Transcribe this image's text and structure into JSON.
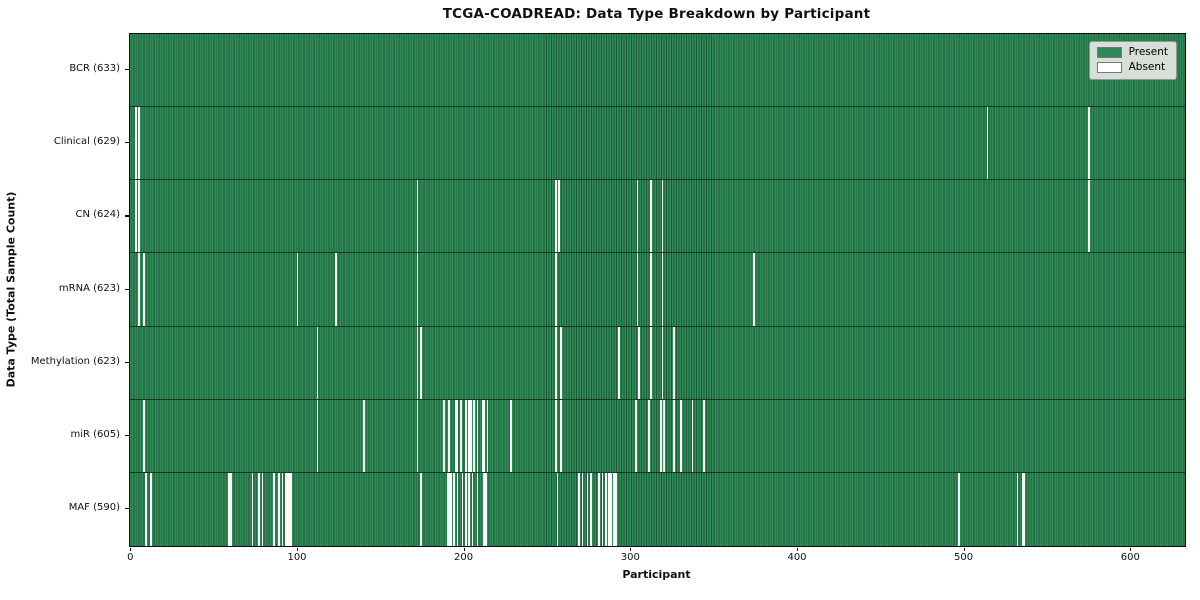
{
  "figure": {
    "title": "TCGA-COADREAD: Data Type Breakdown by Participant",
    "xlabel": "Participant",
    "ylabel": "Data Type (Total Sample Count)"
  },
  "chart_data": {
    "type": "heatmap",
    "title": "TCGA-COADREAD: Data Type Breakdown by Participant",
    "xlabel": "Participant",
    "ylabel": "Data Type (Total Sample Count)",
    "n_participants": 633,
    "x_ticks": [
      0,
      100,
      200,
      300,
      400,
      500,
      600
    ],
    "xlim": [
      0,
      633
    ],
    "grid": false,
    "legend_position": "upper right",
    "legend_items": [
      {
        "label": "Present",
        "color": "#2e8b57"
      },
      {
        "label": "Absent",
        "color": "#ffffff"
      }
    ],
    "present_color": "#2e8b57",
    "present_edge_color": "#1e5c3a",
    "absent_color": "#fafafa",
    "rows": [
      {
        "name": "BCR",
        "label": "BCR (633)",
        "total_samples": 633,
        "absent_participants": []
      },
      {
        "name": "Clinical",
        "label": "Clinical (629)",
        "total_samples": 629,
        "absent_participants": [
          3,
          5,
          514,
          575
        ]
      },
      {
        "name": "CN",
        "label": "CN (624)",
        "total_samples": 624,
        "absent_participants": [
          3,
          5,
          172,
          255,
          257,
          304,
          312,
          319,
          575
        ]
      },
      {
        "name": "mRNA",
        "label": "mRNA (623)",
        "total_samples": 623,
        "absent_participants": [
          5,
          8,
          100,
          123,
          172,
          255,
          304,
          312,
          319,
          374
        ]
      },
      {
        "name": "Methylation",
        "label": "Methylation (623)",
        "total_samples": 623,
        "absent_participants": [
          112,
          172,
          174,
          255,
          258,
          293,
          305,
          312,
          319,
          326
        ]
      },
      {
        "name": "miR",
        "label": "miR (605)",
        "total_samples": 605,
        "absent_participants": [
          8,
          112,
          140,
          172,
          188,
          191,
          195,
          196,
          198,
          201,
          203,
          204,
          206,
          208,
          211,
          212,
          214,
          228,
          255,
          258,
          303,
          311,
          318,
          320,
          326,
          330,
          337,
          344
        ]
      },
      {
        "name": "MAF",
        "label": "MAF (590)",
        "total_samples": 590,
        "absent_participants": [
          9,
          12,
          59,
          60,
          73,
          77,
          79,
          86,
          89,
          91,
          93,
          94,
          95,
          96,
          174,
          190,
          191,
          192,
          194,
          196,
          199,
          201,
          203,
          205,
          208,
          212,
          213,
          256,
          269,
          271,
          274,
          276,
          281,
          283,
          285,
          287,
          288,
          290,
          291,
          497,
          532,
          535,
          536
        ]
      }
    ]
  }
}
